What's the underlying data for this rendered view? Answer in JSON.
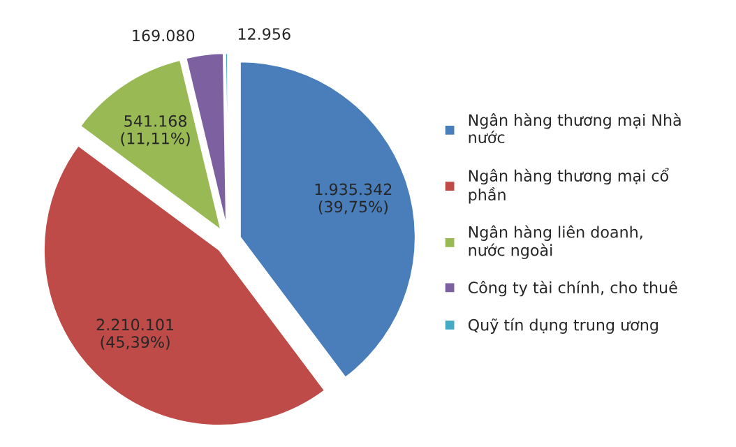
{
  "chart_data": {
    "type": "pie",
    "categories": [
      "Ngân hàng thương mại Nhà\nnước",
      "Ngân hàng thương mại cổ\nphần",
      "Ngân hàng liên doanh,\nnước ngoài",
      "Công ty tài chính, cho thuê",
      "Quỹ tín dụng trung ương"
    ],
    "values": [
      1935342,
      2210101,
      541168,
      169080,
      12956
    ],
    "value_labels": [
      "1.935.342\n(39,75%)",
      "2.210.101\n(45,39%)",
      "541.168\n(11,11%)",
      "169.080",
      "12.956"
    ],
    "colors": [
      "#4a7ebb",
      "#be4b48",
      "#98b954",
      "#7d60a0",
      "#46aac5"
    ],
    "legend": "right"
  }
}
